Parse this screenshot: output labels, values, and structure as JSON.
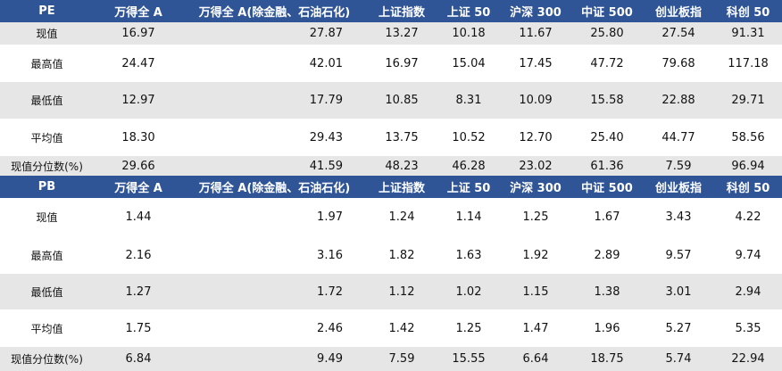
{
  "sections": [
    {
      "header": [
        "PE",
        "万得全 A",
        "万得全 A(除金融、石油石化)",
        "上证指数",
        "上证 50",
        "沪深 300",
        "中证 500",
        "创业板指",
        "科创 50"
      ],
      "rows": [
        [
          "现值",
          "16.97",
          "27.87",
          "13.27",
          "10.18",
          "11.67",
          "25.80",
          "27.54",
          "91.31"
        ],
        [
          "最高值",
          "24.47",
          "42.01",
          "16.97",
          "15.04",
          "17.45",
          "47.72",
          "79.68",
          "117.18"
        ],
        [
          "最低值",
          "12.97",
          "17.79",
          "10.85",
          "8.31",
          "10.09",
          "15.58",
          "22.88",
          "29.71"
        ],
        [
          "平均值",
          "18.30",
          "29.43",
          "13.75",
          "10.52",
          "12.70",
          "25.40",
          "44.77",
          "58.56"
        ],
        [
          "现值分位数(%)",
          "29.66",
          "41.59",
          "48.23",
          "46.28",
          "23.02",
          "61.36",
          "7.59",
          "96.94"
        ]
      ]
    },
    {
      "header": [
        "PB",
        "万得全 A",
        "万得全 A(除金融、石油石化)",
        "上证指数",
        "上证 50",
        "沪深 300",
        "中证 500",
        "创业板指",
        "科创 50"
      ],
      "rows": [
        [
          "现值",
          "1.44",
          "1.97",
          "1.24",
          "1.14",
          "1.25",
          "1.67",
          "3.43",
          "4.22"
        ],
        [
          "最高值",
          "2.16",
          "3.16",
          "1.82",
          "1.63",
          "1.92",
          "2.89",
          "9.57",
          "9.74"
        ],
        [
          "最低值",
          "1.27",
          "1.72",
          "1.12",
          "1.02",
          "1.15",
          "1.38",
          "3.01",
          "2.94"
        ],
        [
          "平均值",
          "1.75",
          "2.46",
          "1.42",
          "1.25",
          "1.47",
          "1.96",
          "5.27",
          "5.35"
        ],
        [
          "现值分位数(%)",
          "6.84",
          "9.49",
          "7.59",
          "15.55",
          "6.64",
          "18.75",
          "5.74",
          "22.94"
        ]
      ]
    }
  ]
}
